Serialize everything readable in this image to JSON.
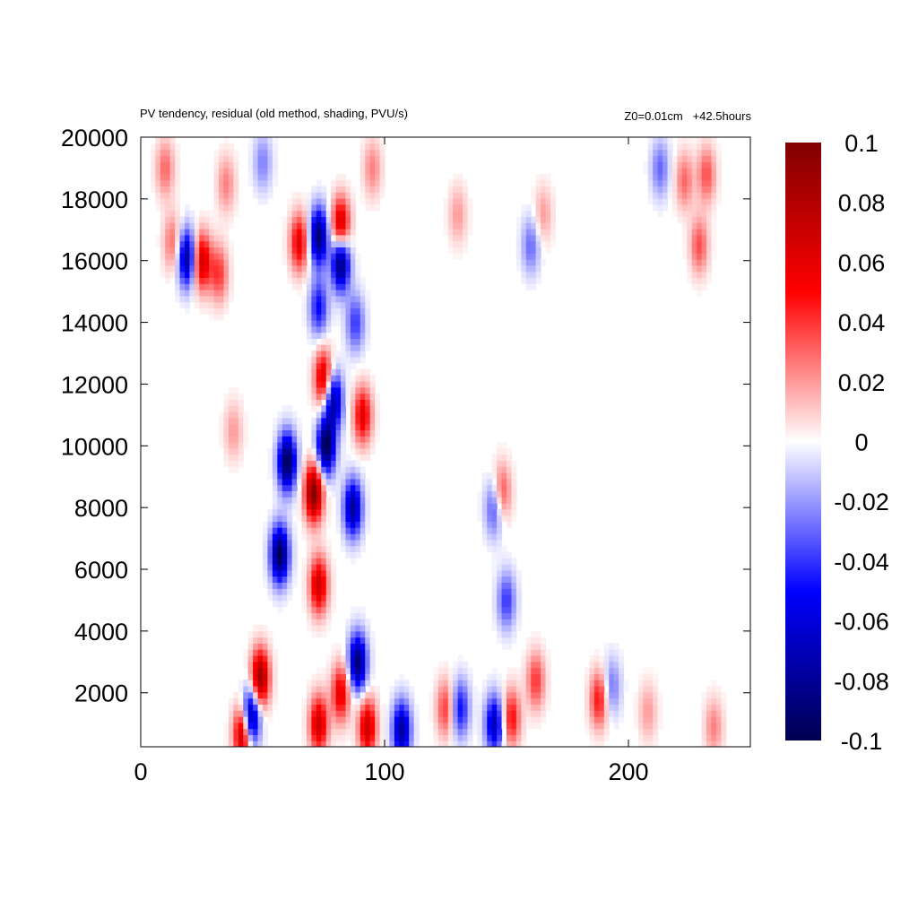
{
  "chart_data": {
    "type": "heatmap",
    "title": "PV tendency, residual (old method, shading, PVU/s)",
    "subtitle": "Z0=0.01cm   +42.5hours",
    "xlabel": "",
    "ylabel": "",
    "xlim": [
      0,
      250
    ],
    "ylim": [
      250,
      20000
    ],
    "x_ticks": [
      0,
      100,
      200
    ],
    "x_tick_labels": [
      "0",
      "100",
      "200"
    ],
    "y_ticks": [
      2000,
      4000,
      6000,
      8000,
      10000,
      12000,
      14000,
      16000,
      18000,
      20000
    ],
    "y_tick_labels": [
      "2000",
      "4000",
      "6000",
      "8000",
      "10000",
      "12000",
      "14000",
      "16000",
      "18000",
      "20000"
    ],
    "colorbar": {
      "min": -0.1,
      "max": 0.1,
      "ticks": [
        0.1,
        0.08,
        0.06,
        0.04,
        0.02,
        0,
        -0.02,
        -0.04,
        -0.06,
        -0.08,
        -0.1
      ],
      "tick_labels": [
        "0.1",
        "0.08",
        "0.06",
        "0.04",
        "0.02",
        "0",
        "-0.02",
        "-0.04",
        "-0.06",
        "-0.08",
        "-0.1"
      ],
      "colormap": "seismic",
      "colors": [
        "#000050",
        "#0000ff",
        "#ffffff",
        "#ff0000",
        "#800000"
      ]
    },
    "grid": false,
    "features": [
      {
        "x": 45,
        "y": 1200,
        "value": -0.1
      },
      {
        "x": 49,
        "y": 2500,
        "value": 0.09
      },
      {
        "x": 42,
        "y": 700,
        "value": 0.09
      },
      {
        "x": 57,
        "y": 6500,
        "value": -0.1
      },
      {
        "x": 60,
        "y": 9500,
        "value": -0.1
      },
      {
        "x": 71,
        "y": 8500,
        "value": 0.1
      },
      {
        "x": 73,
        "y": 5500,
        "value": 0.07
      },
      {
        "x": 76,
        "y": 10000,
        "value": -0.1
      },
      {
        "x": 79,
        "y": 11500,
        "value": -0.08
      },
      {
        "x": 75,
        "y": 12200,
        "value": 0.07
      },
      {
        "x": 87,
        "y": 8000,
        "value": -0.08
      },
      {
        "x": 91,
        "y": 11000,
        "value": 0.06
      },
      {
        "x": 89,
        "y": 3000,
        "value": -0.09
      },
      {
        "x": 82,
        "y": 2000,
        "value": 0.06
      },
      {
        "x": 73,
        "y": 1000,
        "value": 0.07
      },
      {
        "x": 93,
        "y": 900,
        "value": 0.07
      },
      {
        "x": 107,
        "y": 800,
        "value": -0.08
      },
      {
        "x": 125,
        "y": 1500,
        "value": 0.04
      },
      {
        "x": 131,
        "y": 1500,
        "value": -0.05
      },
      {
        "x": 145,
        "y": 1000,
        "value": -0.07
      },
      {
        "x": 152,
        "y": 1200,
        "value": 0.05
      },
      {
        "x": 162,
        "y": 2400,
        "value": 0.04
      },
      {
        "x": 188,
        "y": 1800,
        "value": 0.05
      },
      {
        "x": 193,
        "y": 2200,
        "value": -0.03
      },
      {
        "x": 150,
        "y": 5000,
        "value": -0.04
      },
      {
        "x": 145,
        "y": 8000,
        "value": -0.04
      },
      {
        "x": 148,
        "y": 8500,
        "value": 0.04
      },
      {
        "x": 19,
        "y": 16100,
        "value": -0.08
      },
      {
        "x": 25,
        "y": 16000,
        "value": 0.07
      },
      {
        "x": 32,
        "y": 15600,
        "value": 0.04
      },
      {
        "x": 13,
        "y": 16600,
        "value": 0.03
      },
      {
        "x": 65,
        "y": 16600,
        "value": 0.06
      },
      {
        "x": 73,
        "y": 16800,
        "value": -0.09
      },
      {
        "x": 82,
        "y": 16000,
        "value": -0.1
      },
      {
        "x": 82,
        "y": 17100,
        "value": 0.08
      },
      {
        "x": 73,
        "y": 14500,
        "value": -0.05
      },
      {
        "x": 88,
        "y": 14000,
        "value": -0.04
      },
      {
        "x": 10,
        "y": 19000,
        "value": 0.03
      },
      {
        "x": 35,
        "y": 18500,
        "value": 0.025
      },
      {
        "x": 50,
        "y": 19200,
        "value": -0.025
      },
      {
        "x": 95,
        "y": 19000,
        "value": 0.025
      },
      {
        "x": 130,
        "y": 17500,
        "value": 0.02
      },
      {
        "x": 160,
        "y": 16500,
        "value": -0.03
      },
      {
        "x": 165,
        "y": 17500,
        "value": 0.02
      },
      {
        "x": 223,
        "y": 18600,
        "value": 0.03
      },
      {
        "x": 232,
        "y": 18800,
        "value": 0.035
      },
      {
        "x": 229,
        "y": 16500,
        "value": 0.035
      },
      {
        "x": 213,
        "y": 19000,
        "value": -0.03
      },
      {
        "x": 38,
        "y": 10500,
        "value": 0.02
      },
      {
        "x": 208,
        "y": 1400,
        "value": 0.02
      },
      {
        "x": 235,
        "y": 900,
        "value": 0.025
      }
    ]
  }
}
